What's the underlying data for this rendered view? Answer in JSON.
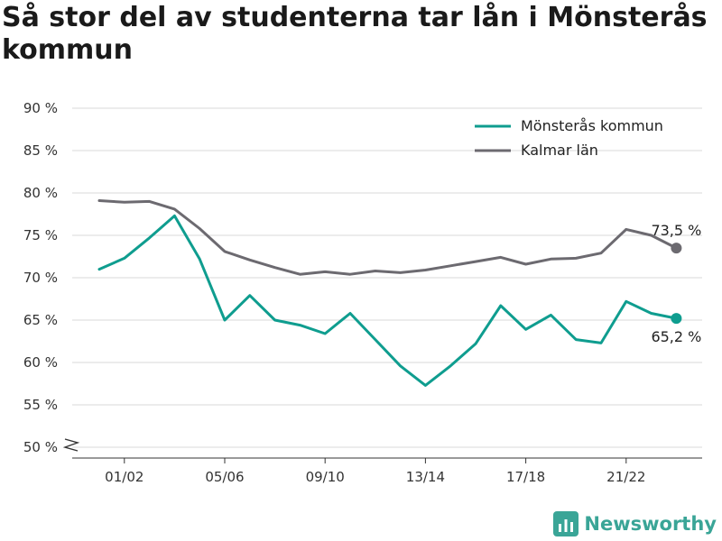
{
  "title": "Så stor del av studenterna tar lån i Mönsterås kommun",
  "brand": {
    "name": "Newsworthy",
    "icon": "newsworthy-logo-icon",
    "color": "#3aa597"
  },
  "chart_data": {
    "type": "line",
    "x": [
      "00/01",
      "01/02",
      "02/03",
      "03/04",
      "04/05",
      "05/06",
      "06/07",
      "07/08",
      "08/09",
      "09/10",
      "10/11",
      "11/12",
      "12/13",
      "13/14",
      "14/15",
      "15/16",
      "16/17",
      "17/18",
      "18/19",
      "19/20",
      "20/21",
      "21/22",
      "22/23",
      "23/24"
    ],
    "x_tick_labels": [
      "01/02",
      "05/06",
      "09/10",
      "13/14",
      "17/18",
      "21/22"
    ],
    "y_tick_labels": [
      "50 %",
      "55 %",
      "60 %",
      "65 %",
      "70 %",
      "75 %",
      "80 %",
      "85 %",
      "90 %"
    ],
    "ylim": [
      50,
      90
    ],
    "y_ticks": [
      50,
      55,
      60,
      65,
      70,
      75,
      80,
      85,
      90
    ],
    "y_axis_break": true,
    "grid": true,
    "legend_position": "top-right",
    "series": [
      {
        "name": "Mönsterås kommun",
        "color": "#0f9d8f",
        "values": [
          71.0,
          72.3,
          74.7,
          77.3,
          72.2,
          65.0,
          67.9,
          65.0,
          64.4,
          63.4,
          65.8,
          62.7,
          59.6,
          57.3,
          59.6,
          62.2,
          66.7,
          63.9,
          65.6,
          62.7,
          62.3,
          67.2,
          65.8,
          65.2
        ],
        "end_label": "65,2 %"
      },
      {
        "name": "Kalmar län",
        "color": "#6c6a70",
        "values": [
          79.1,
          78.9,
          79.0,
          78.1,
          75.8,
          73.1,
          72.1,
          71.2,
          70.4,
          70.7,
          70.4,
          70.8,
          70.6,
          70.9,
          71.4,
          71.9,
          72.4,
          71.6,
          72.2,
          72.3,
          72.9,
          75.7,
          75.0,
          73.5
        ],
        "end_label": "73,5 %"
      }
    ]
  }
}
